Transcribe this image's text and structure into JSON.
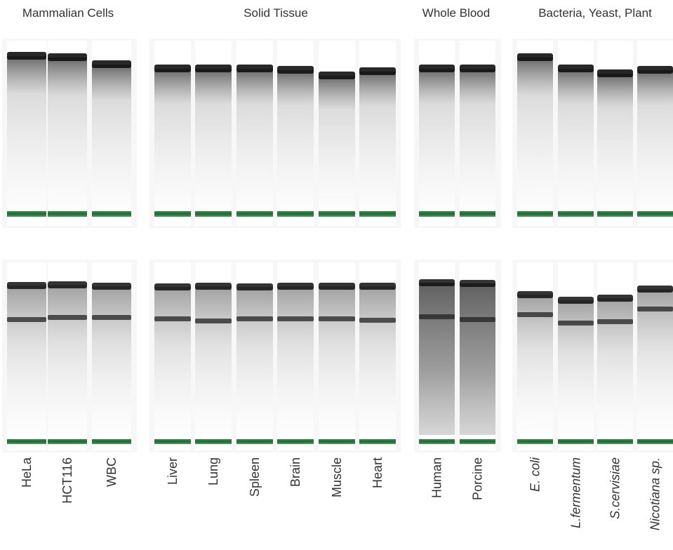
{
  "groups": [
    {
      "title": "Mammalian Cells",
      "lanes": [
        "HeLa",
        "HCT116",
        "WBC"
      ]
    },
    {
      "title": "Solid Tissue",
      "lanes": [
        "Liver",
        "Lung",
        "Spleen",
        "Brain",
        "Muscle",
        "Heart"
      ]
    },
    {
      "title": "Whole Blood",
      "lanes": [
        "Human",
        "Porcine"
      ]
    },
    {
      "title": "Bacteria, Yeast, Plant",
      "lanes": [
        "E. coli",
        "L.fermentum",
        "S.cervisiae",
        "Nicotiana sp."
      ]
    }
  ]
}
